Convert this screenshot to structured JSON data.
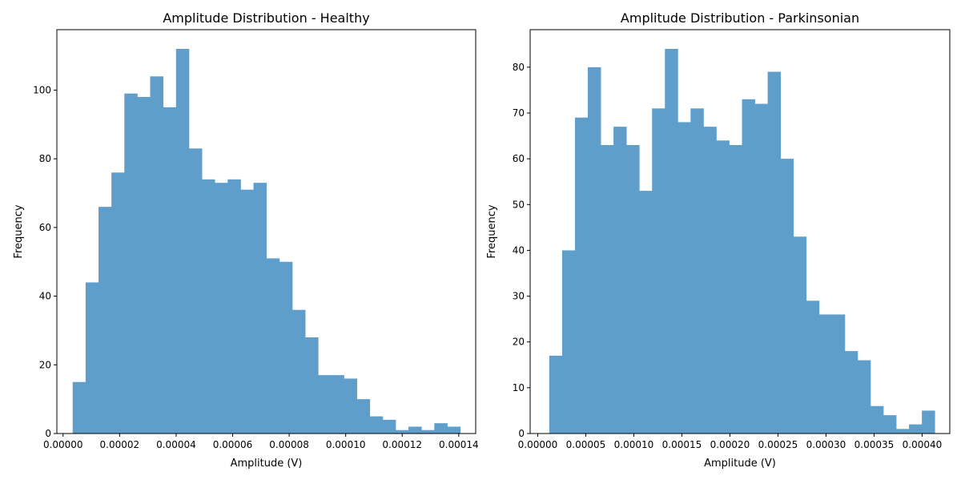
{
  "colors": {
    "bar": "#5f9ecb",
    "axis": "#000000",
    "background": "#ffffff"
  },
  "chart_data": [
    {
      "type": "bar",
      "title": "Amplitude Distribution - Healthy",
      "xlabel": "Amplitude (V)",
      "ylabel": "Frequency",
      "xlim": [
        -2.2e-06,
        0.000146
      ],
      "ylim": [
        0,
        117.6
      ],
      "xticks": [
        {
          "value": 0.0,
          "label": "0.00000"
        },
        {
          "value": 2e-05,
          "label": "0.00002"
        },
        {
          "value": 4e-05,
          "label": "0.00004"
        },
        {
          "value": 6e-05,
          "label": "0.00006"
        },
        {
          "value": 8e-05,
          "label": "0.00008"
        },
        {
          "value": 0.0001,
          "label": "0.00010"
        },
        {
          "value": 0.00012,
          "label": "0.00012"
        },
        {
          "value": 0.00014,
          "label": "0.00014"
        }
      ],
      "yticks": [
        {
          "value": 0,
          "label": "0"
        },
        {
          "value": 20,
          "label": "20"
        },
        {
          "value": 40,
          "label": "40"
        },
        {
          "value": 60,
          "label": "60"
        },
        {
          "value": 80,
          "label": "80"
        },
        {
          "value": 100,
          "label": "100"
        }
      ],
      "bin_start": 3.4e-06,
      "bin_end": 0.0001405,
      "values": [
        15,
        44,
        66,
        76,
        99,
        98,
        104,
        95,
        112,
        83,
        74,
        73,
        74,
        71,
        73,
        51,
        50,
        36,
        28,
        17,
        17,
        16,
        10,
        5,
        4,
        1,
        2,
        1,
        3,
        2
      ]
    },
    {
      "type": "bar",
      "title": "Amplitude Distribution - Parkinsonian",
      "xlabel": "Amplitude (V)",
      "ylabel": "Frequency",
      "xlim": [
        -7.9e-06,
        0.0004288
      ],
      "ylim": [
        0,
        88.2
      ],
      "xticks": [
        {
          "value": 0.0,
          "label": "0.00000"
        },
        {
          "value": 5e-05,
          "label": "0.00005"
        },
        {
          "value": 0.0001,
          "label": "0.00010"
        },
        {
          "value": 0.00015,
          "label": "0.00015"
        },
        {
          "value": 0.0002,
          "label": "0.00020"
        },
        {
          "value": 0.00025,
          "label": "0.00025"
        },
        {
          "value": 0.0003,
          "label": "0.00030"
        },
        {
          "value": 0.00035,
          "label": "0.00035"
        },
        {
          "value": 0.0004,
          "label": "0.00040"
        }
      ],
      "yticks": [
        {
          "value": 0,
          "label": "0"
        },
        {
          "value": 10,
          "label": "10"
        },
        {
          "value": 20,
          "label": "20"
        },
        {
          "value": 30,
          "label": "30"
        },
        {
          "value": 40,
          "label": "40"
        },
        {
          "value": 50,
          "label": "50"
        },
        {
          "value": 60,
          "label": "60"
        },
        {
          "value": 70,
          "label": "70"
        },
        {
          "value": 80,
          "label": "80"
        }
      ],
      "bin_start": 1.2e-05,
      "bin_end": 0.0004131,
      "values": [
        17,
        40,
        69,
        80,
        63,
        67,
        63,
        53,
        71,
        84,
        68,
        71,
        67,
        64,
        63,
        73,
        72,
        79,
        60,
        43,
        29,
        26,
        26,
        18,
        16,
        6,
        4,
        1,
        2,
        5
      ]
    }
  ]
}
